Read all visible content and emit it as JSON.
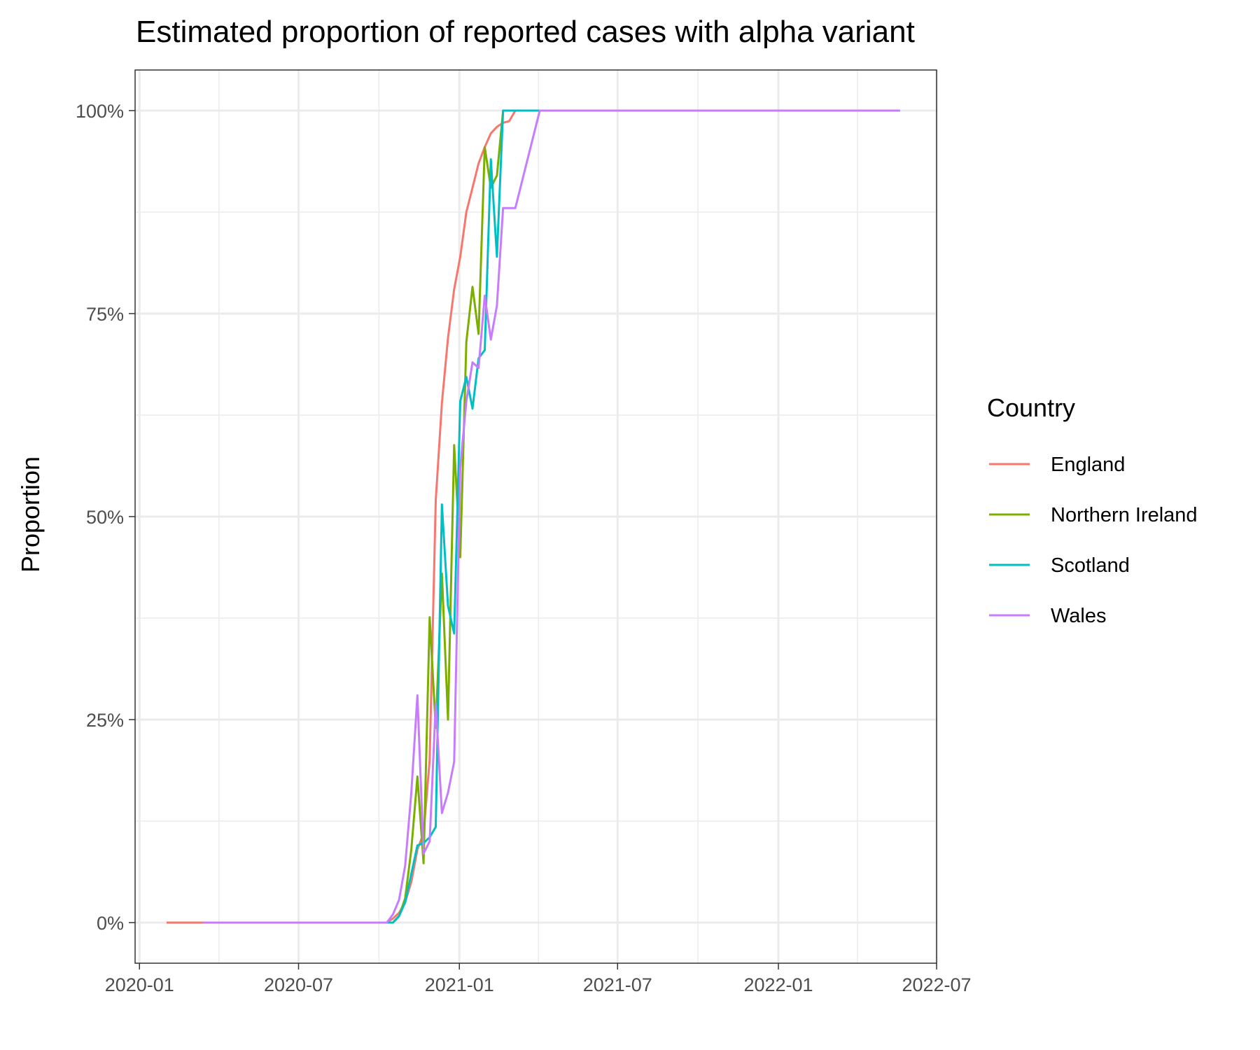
{
  "chart_data": {
    "type": "line",
    "title": "Estimated proportion of reported cases with alpha variant",
    "xlabel": "",
    "ylabel": "Proportion",
    "x_type": "date",
    "xlim": [
      "2019-12-27",
      "2022-07-01"
    ],
    "ylim": [
      -0.05,
      1.05
    ],
    "x_ticks": [
      "2020-01-01",
      "2020-07-01",
      "2021-01-01",
      "2021-07-01",
      "2022-01-01",
      "2022-07-01"
    ],
    "x_tick_labels": [
      "2020-01",
      "2020-07",
      "2021-01",
      "2021-07",
      "2022-01",
      "2022-07"
    ],
    "y_ticks": [
      0,
      0.25,
      0.5,
      0.75,
      1
    ],
    "y_tick_labels": [
      "0%",
      "25%",
      "50%",
      "75%",
      "100%"
    ],
    "grid": true,
    "legend": {
      "title": "Country",
      "position": "right"
    },
    "series": [
      {
        "name": "England",
        "color": "#F8766D",
        "points": [
          [
            "2020-02-01",
            0
          ],
          [
            "2020-03-14",
            0
          ],
          [
            "2020-10-10",
            0
          ],
          [
            "2020-10-17",
            0.005
          ],
          [
            "2020-10-24",
            0.012
          ],
          [
            "2020-10-31",
            0.025
          ],
          [
            "2020-11-07",
            0.05
          ],
          [
            "2020-11-14",
            0.09
          ],
          [
            "2020-11-21",
            0.11
          ],
          [
            "2020-11-28",
            0.2
          ],
          [
            "2020-12-05",
            0.52
          ],
          [
            "2020-12-12",
            0.64
          ],
          [
            "2020-12-19",
            0.72
          ],
          [
            "2020-12-26",
            0.78
          ],
          [
            "2021-01-02",
            0.82
          ],
          [
            "2021-01-09",
            0.875
          ],
          [
            "2021-01-16",
            0.905
          ],
          [
            "2021-01-23",
            0.935
          ],
          [
            "2021-01-30",
            0.955
          ],
          [
            "2021-02-06",
            0.972
          ],
          [
            "2021-02-13",
            0.98
          ],
          [
            "2021-02-20",
            0.985
          ],
          [
            "2021-02-27",
            0.987
          ],
          [
            "2021-03-06",
            1.0
          ],
          [
            "2022-05-20",
            1.0
          ]
        ]
      },
      {
        "name": "Northern Ireland",
        "color": "#7CAE00",
        "points": [
          [
            "2020-03-14",
            0
          ],
          [
            "2020-10-17",
            0
          ],
          [
            "2020-10-24",
            0.008
          ],
          [
            "2020-10-31",
            0.03
          ],
          [
            "2020-11-07",
            0.09
          ],
          [
            "2020-11-14",
            0.18
          ],
          [
            "2020-11-21",
            0.073
          ],
          [
            "2020-11-28",
            0.376
          ],
          [
            "2020-12-05",
            0.24
          ],
          [
            "2020-12-12",
            0.43
          ],
          [
            "2020-12-19",
            0.25
          ],
          [
            "2020-12-26",
            0.588
          ],
          [
            "2021-01-02",
            0.45
          ],
          [
            "2021-01-09",
            0.715
          ],
          [
            "2021-01-16",
            0.783
          ],
          [
            "2021-01-23",
            0.725
          ],
          [
            "2021-01-30",
            0.955
          ],
          [
            "2021-02-06",
            0.905
          ],
          [
            "2021-02-13",
            0.92
          ],
          [
            "2021-02-20",
            1.0
          ],
          [
            "2022-05-20",
            1.0
          ]
        ]
      },
      {
        "name": "Scotland",
        "color": "#00BFC4",
        "points": [
          [
            "2020-03-14",
            0
          ],
          [
            "2020-10-10",
            0
          ],
          [
            "2020-10-17",
            0
          ],
          [
            "2020-10-24",
            0.008
          ],
          [
            "2020-10-31",
            0.025
          ],
          [
            "2020-11-07",
            0.06
          ],
          [
            "2020-11-14",
            0.095
          ],
          [
            "2020-11-21",
            0.098
          ],
          [
            "2020-11-28",
            0.105
          ],
          [
            "2020-12-05",
            0.118
          ],
          [
            "2020-12-12",
            0.515
          ],
          [
            "2020-12-19",
            0.39
          ],
          [
            "2020-12-26",
            0.356
          ],
          [
            "2021-01-02",
            0.642
          ],
          [
            "2021-01-09",
            0.672
          ],
          [
            "2021-01-16",
            0.633
          ],
          [
            "2021-01-23",
            0.695
          ],
          [
            "2021-01-30",
            0.705
          ],
          [
            "2021-02-06",
            0.94
          ],
          [
            "2021-02-13",
            0.82
          ],
          [
            "2021-02-20",
            1.0
          ],
          [
            "2022-05-20",
            1.0
          ]
        ]
      },
      {
        "name": "Wales",
        "color": "#C77CFF",
        "points": [
          [
            "2020-03-14",
            0
          ],
          [
            "2020-10-10",
            0
          ],
          [
            "2020-10-17",
            0.01
          ],
          [
            "2020-10-24",
            0.028
          ],
          [
            "2020-10-31",
            0.07
          ],
          [
            "2020-11-07",
            0.16
          ],
          [
            "2020-11-14",
            0.28
          ],
          [
            "2020-11-21",
            0.085
          ],
          [
            "2020-11-28",
            0.1
          ],
          [
            "2020-12-05",
            0.27
          ],
          [
            "2020-12-12",
            0.135
          ],
          [
            "2020-12-19",
            0.16
          ],
          [
            "2020-12-26",
            0.198
          ],
          [
            "2021-01-02",
            0.56
          ],
          [
            "2021-01-09",
            0.642
          ],
          [
            "2021-01-16",
            0.69
          ],
          [
            "2021-01-23",
            0.683
          ],
          [
            "2021-01-30",
            0.772
          ],
          [
            "2021-02-06",
            0.718
          ],
          [
            "2021-02-13",
            0.76
          ],
          [
            "2021-02-20",
            0.88
          ],
          [
            "2021-03-06",
            0.88
          ],
          [
            "2021-04-03",
            1.0
          ],
          [
            "2022-05-20",
            1.0
          ]
        ]
      }
    ]
  }
}
